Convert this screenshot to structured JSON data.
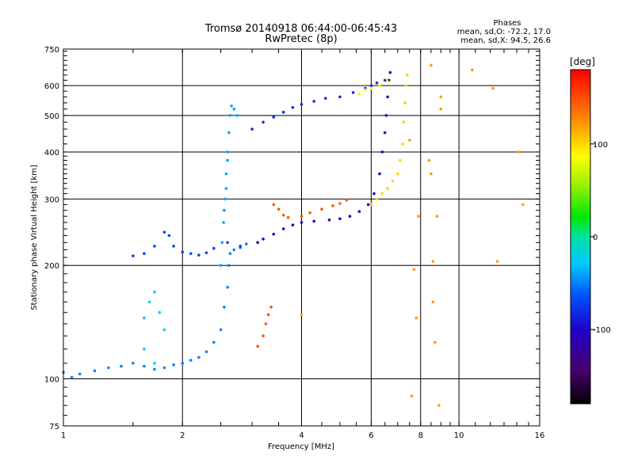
{
  "chart_data": {
    "type": "scatter",
    "title": "Tromsø 20140918 06:44:00-06:45:43",
    "subtitle": "RwPretec (8p)",
    "xlabel": "Frequency [MHz]",
    "ylabel": "Stationary phase Virtual Height [km]",
    "x_scale": "log2",
    "y_scale": "log",
    "xlim": [
      1,
      16
    ],
    "ylim": [
      75,
      750
    ],
    "x_ticks": [
      1,
      2,
      4,
      6,
      8,
      10,
      16
    ],
    "x_tick_labels": [
      "1",
      "2",
      "4",
      "6",
      "8",
      "10",
      "16"
    ],
    "y_ticks": [
      75,
      100,
      200,
      300,
      400,
      500,
      600,
      750
    ],
    "y_tick_labels": [
      "75",
      "100",
      "200",
      "300",
      "400",
      "500",
      "600",
      "750"
    ],
    "grid": true,
    "phases_box": {
      "heading": "Phases",
      "line1": "mean, sd,O: -72.2, 17.0",
      "line2": "mean, sd,X:  94.5, 26.6"
    },
    "colorbar": {
      "label": "[deg]",
      "range": [
        -180,
        180
      ],
      "ticks": [
        100,
        0,
        -100
      ],
      "tick_labels": [
        "100",
        "0",
        "-100"
      ]
    },
    "series": [
      {
        "values": [
          [
            1.0,
            104
          ],
          [
            1.05,
            101
          ],
          [
            1.1,
            103
          ],
          [
            1.2,
            105
          ],
          [
            1.3,
            107
          ],
          [
            1.4,
            108
          ],
          [
            1.5,
            110
          ],
          [
            1.6,
            108
          ],
          [
            1.7,
            106
          ],
          [
            1.8,
            107
          ],
          [
            1.9,
            109
          ],
          [
            2.0,
            110
          ],
          [
            2.1,
            112
          ],
          [
            2.2,
            114
          ],
          [
            2.3,
            118
          ],
          [
            2.4,
            125
          ],
          [
            2.5,
            135
          ],
          [
            2.55,
            155
          ],
          [
            2.6,
            175
          ],
          [
            2.62,
            200
          ],
          [
            2.64,
            215
          ],
          [
            2.7,
            220
          ],
          [
            2.8,
            223
          ],
          [
            2.9,
            228
          ]
        ],
        "phase": -50
      },
      {
        "values": [
          [
            2.5,
            200
          ],
          [
            2.52,
            230
          ],
          [
            2.54,
            260
          ],
          [
            2.56,
            300
          ],
          [
            2.58,
            350
          ],
          [
            2.6,
            400
          ],
          [
            2.62,
            450
          ],
          [
            2.64,
            500
          ],
          [
            2.66,
            530
          ],
          [
            2.7,
            520
          ],
          [
            2.75,
            500
          ],
          [
            2.55,
            280
          ],
          [
            2.58,
            320
          ],
          [
            2.6,
            380
          ]
        ],
        "phase": -40
      },
      {
        "values": [
          [
            1.5,
            212
          ],
          [
            1.6,
            215
          ],
          [
            1.7,
            225
          ],
          [
            1.8,
            245
          ],
          [
            1.85,
            240
          ],
          [
            1.9,
            225
          ],
          [
            2.0,
            217
          ],
          [
            2.1,
            215
          ],
          [
            2.2,
            213
          ],
          [
            2.3,
            216
          ],
          [
            2.4,
            222
          ],
          [
            2.6,
            230
          ],
          [
            2.8,
            225
          ]
        ],
        "phase": -70
      },
      {
        "values": [
          [
            3.1,
            230
          ],
          [
            3.2,
            235
          ],
          [
            3.4,
            242
          ],
          [
            3.6,
            250
          ],
          [
            3.8,
            256
          ],
          [
            4.0,
            260
          ],
          [
            4.3,
            262
          ],
          [
            4.7,
            264
          ],
          [
            5.0,
            266
          ],
          [
            5.3,
            270
          ],
          [
            5.6,
            278
          ],
          [
            5.9,
            290
          ],
          [
            6.1,
            310
          ],
          [
            6.3,
            350
          ],
          [
            6.4,
            400
          ],
          [
            6.5,
            450
          ],
          [
            6.55,
            500
          ],
          [
            6.6,
            560
          ],
          [
            6.65,
            620
          ],
          [
            6.7,
            650
          ]
        ],
        "phase": -110
      },
      {
        "values": [
          [
            6.0,
            290
          ],
          [
            6.2,
            300
          ],
          [
            6.4,
            310
          ],
          [
            6.6,
            320
          ],
          [
            6.8,
            335
          ],
          [
            7.0,
            350
          ],
          [
            7.1,
            380
          ],
          [
            7.2,
            420
          ],
          [
            7.25,
            480
          ],
          [
            7.3,
            540
          ],
          [
            7.35,
            600
          ],
          [
            7.4,
            640
          ]
        ],
        "phase": 100
      },
      {
        "values": [
          [
            3.4,
            290
          ],
          [
            3.5,
            282
          ],
          [
            3.6,
            272
          ],
          [
            3.7,
            268
          ],
          [
            4.0,
            270
          ],
          [
            4.2,
            276
          ],
          [
            4.5,
            282
          ],
          [
            4.8,
            288
          ],
          [
            5.0,
            292
          ],
          [
            5.2,
            298
          ]
        ],
        "phase": 145
      },
      {
        "values": [
          [
            3.0,
            460
          ],
          [
            3.2,
            480
          ],
          [
            3.4,
            495
          ],
          [
            3.6,
            510
          ],
          [
            3.8,
            525
          ],
          [
            4.0,
            535
          ],
          [
            4.3,
            545
          ],
          [
            4.6,
            555
          ],
          [
            5.0,
            560
          ],
          [
            5.4,
            575
          ],
          [
            5.8,
            590
          ],
          [
            6.0,
            600
          ],
          [
            6.2,
            610
          ],
          [
            6.5,
            620
          ]
        ],
        "phase": -80
      },
      {
        "values": [
          [
            5.6,
            570
          ],
          [
            5.8,
            585
          ],
          [
            6.0,
            590
          ],
          [
            6.3,
            600
          ],
          [
            6.6,
            615
          ]
        ],
        "phase": 80
      },
      {
        "values": [
          [
            3.1,
            122
          ],
          [
            3.2,
            130
          ],
          [
            3.25,
            140
          ],
          [
            3.3,
            148
          ],
          [
            3.35,
            155
          ]
        ],
        "phase": 150
      },
      {
        "values": [
          [
            1.6,
            145
          ],
          [
            1.65,
            160
          ],
          [
            1.7,
            170
          ],
          [
            1.75,
            150
          ],
          [
            1.8,
            135
          ],
          [
            1.6,
            120
          ],
          [
            1.7,
            110
          ]
        ],
        "phase": -30
      },
      {
        "values": [
          [
            8.6,
            160
          ],
          [
            8.7,
            125
          ],
          [
            8.8,
            270
          ],
          [
            8.6,
            205
          ],
          [
            8.5,
            350
          ],
          [
            8.4,
            380
          ],
          [
            8.9,
            85
          ],
          [
            9.0,
            560
          ],
          [
            8.5,
            680
          ],
          [
            10.8,
            660
          ],
          [
            12.2,
            590
          ],
          [
            12.5,
            205
          ],
          [
            14.2,
            400
          ],
          [
            14.5,
            290
          ],
          [
            7.6,
            90
          ],
          [
            7.9,
            270
          ],
          [
            7.8,
            145
          ],
          [
            4.0,
            148
          ],
          [
            7.5,
            430
          ],
          [
            7.7,
            195
          ],
          [
            9.0,
            520
          ]
        ],
        "phase": 120
      }
    ]
  }
}
